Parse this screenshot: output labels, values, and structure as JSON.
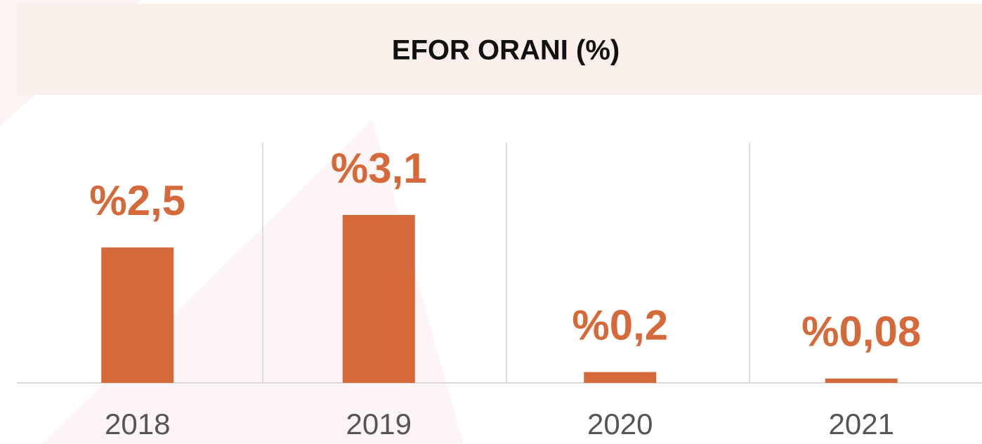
{
  "chart_data": {
    "type": "bar",
    "title": "EFOR ORANI (%)",
    "categories": [
      "2018",
      "2019",
      "2020",
      "2021"
    ],
    "values": [
      2.5,
      3.1,
      0.2,
      0.08
    ],
    "value_labels": [
      "%2,5",
      "%3,1",
      "%0,2",
      "%0,08"
    ],
    "color": "#d5693a"
  }
}
